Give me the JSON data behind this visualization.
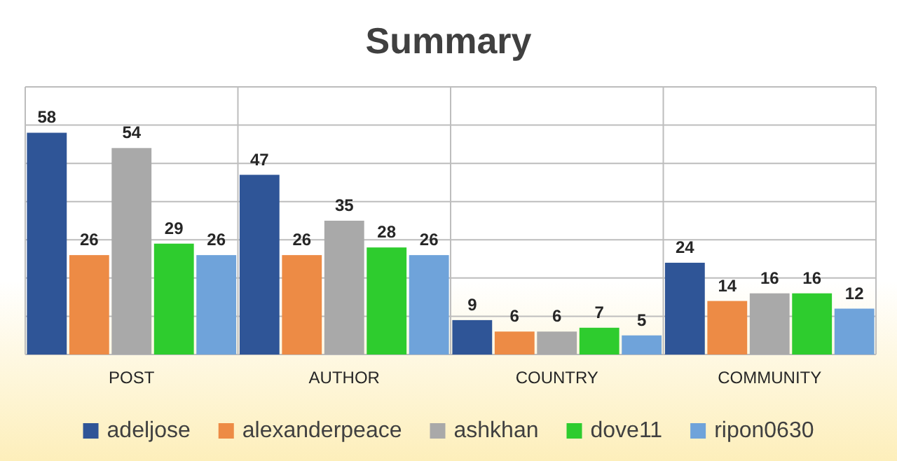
{
  "chart_data": {
    "type": "bar",
    "title": "Summary",
    "categories": [
      "POST",
      "AUTHOR",
      "COUNTRY",
      "COMMUNITY"
    ],
    "series": [
      {
        "name": "adeljose",
        "color": "#2f5597",
        "values": [
          58,
          47,
          9,
          24
        ]
      },
      {
        "name": "alexanderpeace",
        "color": "#ed8b45",
        "values": [
          26,
          26,
          6,
          14
        ]
      },
      {
        "name": "ashkhan",
        "color": "#a9a9a9",
        "values": [
          54,
          35,
          6,
          16
        ]
      },
      {
        "name": "dove11",
        "color": "#2ecc2e",
        "values": [
          29,
          28,
          7,
          16
        ]
      },
      {
        "name": "ripon0630",
        "color": "#6fa3da",
        "values": [
          26,
          26,
          5,
          12
        ]
      }
    ],
    "ylim": [
      0,
      70
    ],
    "yticks": [
      {
        "value": 0,
        "label": null
      },
      {
        "value": 10,
        "label": null
      },
      {
        "value": 20,
        "label": null
      },
      {
        "value": 30,
        "label": null
      },
      {
        "value": 40,
        "label": null
      },
      {
        "value": 50,
        "label": null
      },
      {
        "value": 60,
        "label": null
      },
      {
        "value": 70,
        "label": null
      }
    ],
    "tick_labels": "x",
    "grid": true,
    "legend": "bottom",
    "data_labels": true
  }
}
